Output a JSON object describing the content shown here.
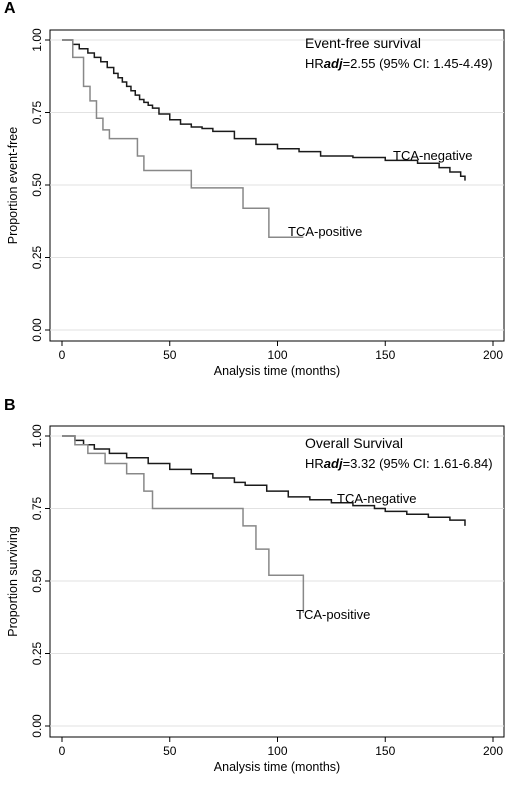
{
  "chart_data": [
    {
      "type": "line",
      "panel": "A",
      "ylabel": "Proportion event-free",
      "xlabel": "Analysis time (months)",
      "xlim": [
        0,
        200
      ],
      "ylim": [
        0,
        1
      ],
      "xticks": [
        "0",
        "50",
        "100",
        "150",
        "200"
      ],
      "yticks": [
        "0.00",
        "0.25",
        "0.50",
        "0.75",
        "1.00"
      ],
      "grid": true,
      "annotation_title": "Event-free survival",
      "annotation_hr_prefix": "HR",
      "annotation_hr_sub": "adj",
      "annotation_hr_rest": "=2.55 (95% CI: 1.45-4.49)",
      "series": [
        {
          "name": "TCA-negative",
          "color": "#1a1a1a",
          "x": [
            0,
            5,
            8,
            12,
            15,
            18,
            21,
            24,
            26,
            28,
            30,
            32,
            34,
            36,
            38,
            40,
            42,
            45,
            50,
            55,
            60,
            65,
            70,
            80,
            90,
            100,
            110,
            120,
            135,
            150,
            165,
            175,
            180,
            185,
            187
          ],
          "y": [
            1.0,
            0.985,
            0.97,
            0.955,
            0.94,
            0.925,
            0.905,
            0.885,
            0.87,
            0.855,
            0.84,
            0.825,
            0.81,
            0.795,
            0.785,
            0.775,
            0.765,
            0.745,
            0.725,
            0.71,
            0.7,
            0.695,
            0.685,
            0.66,
            0.64,
            0.625,
            0.615,
            0.6,
            0.595,
            0.585,
            0.575,
            0.56,
            0.545,
            0.53,
            0.515
          ]
        },
        {
          "name": "TCA-positive",
          "color": "#888888",
          "x": [
            0,
            5,
            10,
            13,
            16,
            19,
            22,
            35,
            38,
            60,
            84,
            96,
            112
          ],
          "y": [
            1.0,
            0.94,
            0.84,
            0.79,
            0.73,
            0.69,
            0.66,
            0.6,
            0.55,
            0.49,
            0.42,
            0.32,
            0.32
          ]
        }
      ]
    },
    {
      "type": "line",
      "panel": "B",
      "ylabel": "Proportion surviving",
      "xlabel": "Analysis time (months)",
      "xlim": [
        0,
        200
      ],
      "ylim": [
        0,
        1
      ],
      "xticks": [
        "0",
        "50",
        "100",
        "150",
        "200"
      ],
      "yticks": [
        "0.00",
        "0.25",
        "0.50",
        "0.75",
        "1.00"
      ],
      "grid": true,
      "annotation_title": "Overall Survival",
      "annotation_hr_prefix": "HR",
      "annotation_hr_sub": "adj",
      "annotation_hr_rest": "=3.32 (95% CI: 1.61-6.84)",
      "series": [
        {
          "name": "TCA-negative",
          "color": "#1a1a1a",
          "x": [
            0,
            6,
            10,
            15,
            22,
            30,
            40,
            50,
            60,
            70,
            80,
            85,
            95,
            105,
            115,
            125,
            135,
            145,
            150,
            160,
            170,
            180,
            187
          ],
          "y": [
            1.0,
            0.985,
            0.97,
            0.955,
            0.94,
            0.925,
            0.905,
            0.885,
            0.87,
            0.855,
            0.84,
            0.83,
            0.81,
            0.79,
            0.78,
            0.77,
            0.76,
            0.75,
            0.74,
            0.73,
            0.72,
            0.71,
            0.69
          ]
        },
        {
          "name": "TCA-positive",
          "color": "#888888",
          "x": [
            0,
            6,
            12,
            20,
            30,
            38,
            42,
            84,
            90,
            96,
            112
          ],
          "y": [
            1.0,
            0.97,
            0.94,
            0.905,
            0.87,
            0.81,
            0.75,
            0.69,
            0.61,
            0.52,
            0.39
          ]
        }
      ]
    }
  ]
}
